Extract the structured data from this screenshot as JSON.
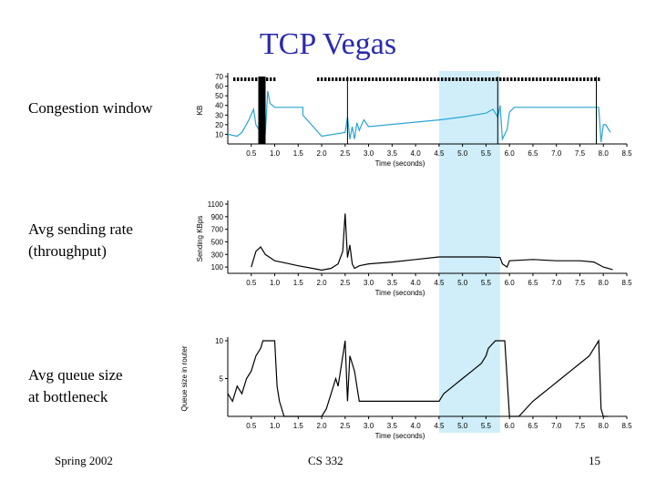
{
  "slide": {
    "title": "TCP Vegas",
    "labels": {
      "cwnd": "Congestion window",
      "rate_line1": "Avg sending rate",
      "rate_line2": "(throughput)",
      "queue_line1": "Avg queue size",
      "queue_line2": "at bottleneck"
    },
    "footer": {
      "left": "Spring 2002",
      "center": "CS 332",
      "right": "15"
    }
  },
  "colors": {
    "title": "#2a2ab0",
    "highlight": "#cfeefa",
    "cwnd_line": "#2aa5d4",
    "plot_line": "#000000"
  },
  "chart_data": [
    {
      "type": "line",
      "title": "Congestion window",
      "xlabel": "Time (seconds)",
      "ylabel": "KB",
      "xlim": [
        0,
        8.5
      ],
      "ylim": [
        0,
        70
      ],
      "xticks": [
        "0.5",
        "1.0",
        "1.5",
        "2.0",
        "2.5",
        "3.0",
        "3.5",
        "4.0",
        "4.5",
        "5.0",
        "5.5",
        "6.0",
        "6.5",
        "7.0",
        "7.5",
        "8.0",
        "8.5"
      ],
      "yticks": [
        "70",
        "60",
        "50",
        "40",
        "30",
        "20",
        "10"
      ],
      "highlight_range": [
        4.5,
        5.8
      ],
      "series": [
        {
          "name": "cwnd",
          "x": [
            0,
            0.2,
            0.3,
            0.45,
            0.55,
            0.6,
            0.7,
            0.75,
            0.8,
            0.85,
            0.9,
            0.95,
            1.0,
            1.6,
            1.6,
            2.0,
            2.5,
            2.55,
            2.6,
            2.65,
            2.7,
            2.75,
            2.8,
            2.85,
            2.9,
            3.0,
            4.5,
            5.0,
            5.5,
            5.65,
            5.75,
            5.8,
            5.85,
            5.95,
            6.0,
            6.1,
            7.8,
            7.9,
            7.95,
            8.0,
            8.05,
            8.15
          ],
          "y": [
            10,
            8,
            12,
            25,
            36,
            20,
            12,
            50,
            10,
            55,
            42,
            40,
            38,
            38,
            30,
            8,
            12,
            28,
            5,
            18,
            5,
            22,
            14,
            20,
            25,
            18,
            25,
            28,
            32,
            36,
            28,
            40,
            5,
            15,
            33,
            38,
            38,
            38,
            2,
            20,
            20,
            12
          ]
        }
      ]
    },
    {
      "type": "line",
      "title": "Avg sending rate (throughput)",
      "xlabel": "Time (seconds)",
      "ylabel": "Sending KBps",
      "xlim": [
        0,
        8.5
      ],
      "ylim": [
        0,
        1100
      ],
      "xticks": [
        "0.5",
        "1.0",
        "1.5",
        "2.0",
        "2.5",
        "3.0",
        "3.5",
        "4.0",
        "4.5",
        "5.0",
        "5.5",
        "6.0",
        "6.5",
        "7.0",
        "7.5",
        "8.0",
        "8.5"
      ],
      "yticks": [
        "1100",
        "900",
        "700",
        "500",
        "300",
        "100"
      ],
      "highlight_range": [
        4.5,
        5.8
      ],
      "series": [
        {
          "name": "rate",
          "x": [
            0.5,
            0.6,
            0.7,
            0.8,
            0.9,
            1.0,
            1.2,
            1.5,
            1.8,
            2.0,
            2.2,
            2.35,
            2.45,
            2.5,
            2.55,
            2.6,
            2.65,
            2.7,
            2.8,
            3.0,
            3.5,
            4.0,
            4.5,
            5.0,
            5.5,
            5.8,
            5.85,
            5.95,
            6.0,
            6.5,
            7.0,
            7.5,
            7.8,
            8.0,
            8.2
          ],
          "y": [
            100,
            350,
            420,
            300,
            250,
            200,
            170,
            120,
            80,
            50,
            80,
            150,
            350,
            950,
            250,
            450,
            150,
            80,
            120,
            150,
            180,
            220,
            260,
            260,
            260,
            250,
            150,
            100,
            200,
            220,
            200,
            200,
            180,
            100,
            60
          ]
        }
      ]
    },
    {
      "type": "line",
      "title": "Avg queue size at bottleneck",
      "xlabel": "Time (seconds)",
      "ylabel": "Queue size in router",
      "xlim": [
        0,
        8.5
      ],
      "ylim": [
        0,
        10
      ],
      "xticks": [
        "0.5",
        "1.0",
        "1.5",
        "2.0",
        "2.5",
        "3.0",
        "3.5",
        "4.0",
        "4.5",
        "5.0",
        "5.5",
        "6.0",
        "6.5",
        "7.0",
        "7.5",
        "8.0",
        "8.5"
      ],
      "yticks": [
        "10",
        "5"
      ],
      "highlight_range": [
        4.5,
        5.8
      ],
      "series": [
        {
          "name": "queue",
          "x": [
            0,
            0.1,
            0.2,
            0.3,
            0.4,
            0.5,
            0.6,
            0.7,
            0.75,
            0.8,
            1.0,
            1.05,
            1.1,
            1.2,
            1.5,
            2.0,
            2.1,
            2.2,
            2.3,
            2.35,
            2.4,
            2.5,
            2.55,
            2.6,
            2.7,
            2.8,
            3.0,
            3.5,
            4.0,
            4.5,
            4.6,
            4.8,
            5.0,
            5.2,
            5.4,
            5.5,
            5.55,
            5.7,
            5.8,
            5.9,
            6.0,
            6.2,
            6.5,
            6.7,
            6.9,
            7.1,
            7.3,
            7.5,
            7.7,
            7.8,
            7.9,
            7.95,
            8.0,
            8.1
          ],
          "y": [
            3,
            2,
            4,
            3,
            5,
            6,
            8,
            9,
            10,
            10,
            10,
            4,
            2,
            0,
            0,
            0,
            1,
            3,
            5,
            4,
            6,
            10,
            2,
            8,
            6,
            2,
            2,
            2,
            2,
            2,
            3,
            4,
            5,
            6,
            7,
            8,
            9,
            10,
            10,
            10,
            0,
            0,
            2,
            3,
            4,
            5,
            6,
            7,
            8,
            9,
            10,
            1,
            0,
            0
          ]
        }
      ]
    }
  ]
}
